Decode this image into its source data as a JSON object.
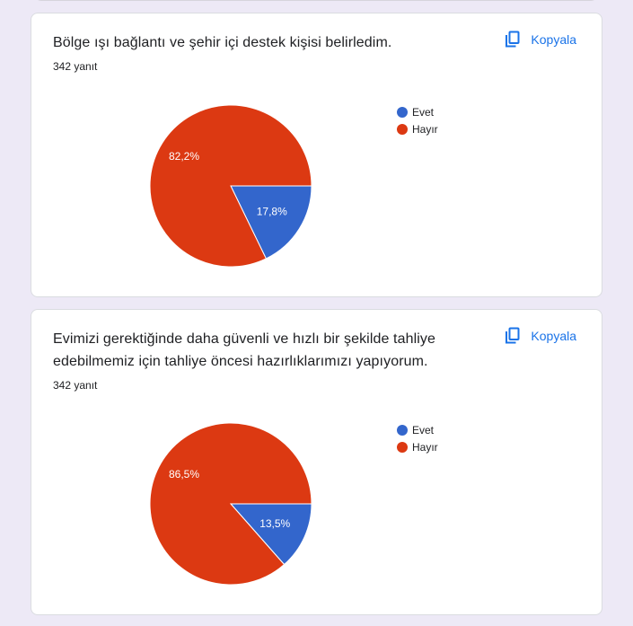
{
  "colors": {
    "background": "#ede9f6",
    "card": "#ffffff",
    "accent": "#1a73e8",
    "evet": "#3366cc",
    "hayir": "#dc3912"
  },
  "cards": [
    {
      "title": "Bölge ışı bağlantı ve şehir içi destek kişisi belirledim.",
      "response_count": "342 yanıt",
      "copy_label": "Kopyala",
      "legend": [
        {
          "label": "Evet",
          "color": "#3366cc"
        },
        {
          "label": "Hayır",
          "color": "#dc3912"
        }
      ],
      "slice_labels": {
        "evet": "17,8%",
        "hayir": "82,2%"
      }
    },
    {
      "title": "Evimizi gerektiğinde daha güvenli ve hızlı bir şekilde tahliye edebilmemiz için tahliye öncesi hazırlıklarımızı yapıyorum.",
      "response_count": "342 yanıt",
      "copy_label": "Kopyala",
      "legend": [
        {
          "label": "Evet",
          "color": "#3366cc"
        },
        {
          "label": "Hayır",
          "color": "#dc3912"
        }
      ],
      "slice_labels": {
        "evet": "13,5%",
        "hayir": "86,5%"
      }
    }
  ],
  "chart_data": [
    {
      "type": "pie",
      "title": "Bölge ışı bağlantı ve şehir içi destek kişisi belirledim.",
      "subtitle": "342 yanıt",
      "categories": [
        "Evet",
        "Hayır"
      ],
      "values": [
        17.8,
        82.2
      ],
      "colors": [
        "#3366cc",
        "#dc3912"
      ],
      "legend_position": "right",
      "start_angle": "3 o'clock, clockwise"
    },
    {
      "type": "pie",
      "title": "Evimizi gerektiğinde daha güvenli ve hızlı bir şekilde tahliye edebilmemiz için tahliye öncesi hazırlıklarımızı yapıyorum.",
      "subtitle": "342 yanıt",
      "categories": [
        "Evet",
        "Hayır"
      ],
      "values": [
        13.5,
        86.5
      ],
      "colors": [
        "#3366cc",
        "#dc3912"
      ],
      "legend_position": "right",
      "start_angle": "3 o'clock, clockwise"
    }
  ]
}
